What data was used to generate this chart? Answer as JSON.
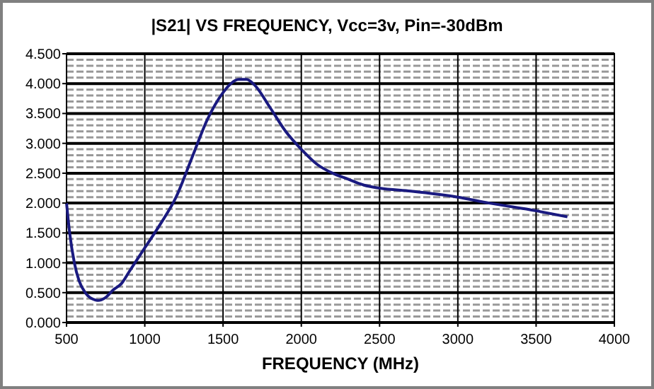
{
  "chart_data": {
    "type": "line",
    "title": "|S21| VS FREQUENCY, Vcc=3v, Pin=-30dBm",
    "xlabel": "FREQUENCY (MHz)",
    "x": [
      500,
      520,
      550,
      580,
      620,
      680,
      700,
      750,
      800,
      850,
      900,
      1000,
      1100,
      1200,
      1300,
      1400,
      1450,
      1500,
      1550,
      1600,
      1650,
      1700,
      1800,
      1900,
      2000,
      2100,
      2200,
      2300,
      2400,
      2500,
      2700,
      3000,
      3200,
      3500,
      3700
    ],
    "series": [
      {
        "color": "#1a1a80",
        "values": [
          2.0,
          1.5,
          1.0,
          0.7,
          0.5,
          0.38,
          0.37,
          0.42,
          0.55,
          0.65,
          0.85,
          1.25,
          1.65,
          2.1,
          2.75,
          3.4,
          3.65,
          3.85,
          4.0,
          4.07,
          4.07,
          3.98,
          3.6,
          3.2,
          2.9,
          2.65,
          2.5,
          2.4,
          2.3,
          2.25,
          2.2,
          2.1,
          2.0,
          1.87,
          1.77
        ]
      }
    ],
    "xlim": [
      500,
      4000
    ],
    "xticks": [
      500,
      1000,
      1500,
      2000,
      2500,
      3000,
      3500,
      4000
    ],
    "ylim": [
      0,
      4.5
    ],
    "yticks": [
      {
        "value": 0,
        "label": "0.000"
      },
      {
        "value": 0.5,
        "label": "0.500"
      },
      {
        "value": 1,
        "label": "1.000"
      },
      {
        "value": 1.5,
        "label": "1.500"
      },
      {
        "value": 2,
        "label": "2.000"
      },
      {
        "value": 2.5,
        "label": "2.500"
      },
      {
        "value": 3,
        "label": "3.000"
      },
      {
        "value": 3.5,
        "label": "3.500"
      },
      {
        "value": 4,
        "label": "4.000"
      },
      {
        "value": 4.5,
        "label": "4.500"
      }
    ],
    "grid": true,
    "marker": "none",
    "line_style": "solid"
  }
}
